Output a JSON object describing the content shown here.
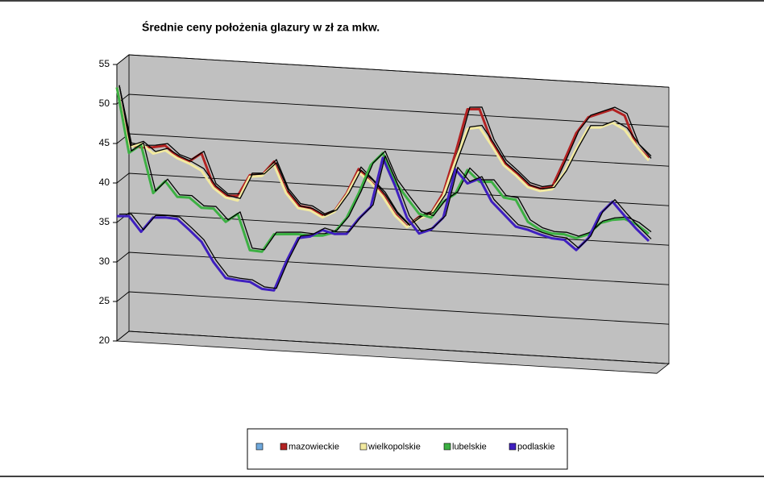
{
  "chart_data": {
    "type": "line",
    "title": "Średnie ceny położenia glazury w zł za mkw.",
    "ylim": [
      20,
      55
    ],
    "yticks": [
      20,
      25,
      30,
      35,
      40,
      45,
      50,
      55
    ],
    "grid": true,
    "series": [
      {
        "name": "mazowieckie",
        "color": "#b22222",
        "values": [
          52.1,
          44.9,
          44.7,
          44.8,
          45.1,
          43.8,
          43.3,
          44.4,
          40.4,
          39.2,
          39.3,
          42.0,
          42.1,
          43.9,
          40.3,
          38.5,
          38.3,
          37.4,
          38.1,
          40.4,
          43.6,
          42.1,
          40.6,
          38.2,
          36.7,
          38.0,
          38.6,
          41.2,
          46.3,
          52.0,
          52.1,
          48.1,
          45.6,
          44.3,
          42.9,
          42.5,
          42.8,
          46.2,
          49.8,
          51.9,
          52.5,
          53.1,
          52.4,
          48.6,
          47.2
        ]
      },
      {
        "name": "wielkopolskie",
        "color": "#f2eaa0",
        "values": [
          52.1,
          44.6,
          45.2,
          44.0,
          44.5,
          43.6,
          43.0,
          42.2,
          40.1,
          39.0,
          38.7,
          41.8,
          42.0,
          43.5,
          40.0,
          38.2,
          38.0,
          37.2,
          38.0,
          40.2,
          43.2,
          42.0,
          40.3,
          38.0,
          36.6,
          37.8,
          38.4,
          40.8,
          45.3,
          49.5,
          49.8,
          47.6,
          45.2,
          44.0,
          42.6,
          42.2,
          42.5,
          44.7,
          47.8,
          50.6,
          50.7,
          51.4,
          50.6,
          48.6,
          46.9
        ]
      },
      {
        "name": "lubelskie",
        "color": "#3cb043",
        "values": [
          52.1,
          43.9,
          45.0,
          39.0,
          40.6,
          38.7,
          38.7,
          37.5,
          37.5,
          35.9,
          37.0,
          32.5,
          32.4,
          34.7,
          34.8,
          34.9,
          34.8,
          34.9,
          35.4,
          37.3,
          40.5,
          44.2,
          45.8,
          42.3,
          40.3,
          38.4,
          38.0,
          40.1,
          41.2,
          44.3,
          42.9,
          43.0,
          41.1,
          40.9,
          38.2,
          37.3,
          36.9,
          36.9,
          36.5,
          37.1,
          38.6,
          39.1,
          39.3,
          38.7,
          37.6
        ]
      },
      {
        "name": "podlaskie",
        "color": "#3f1fbf",
        "values": [
          35.8,
          35.9,
          34.0,
          35.9,
          36.0,
          35.9,
          34.6,
          33.2,
          30.7,
          28.8,
          28.6,
          28.5,
          27.7,
          27.6,
          31.3,
          34.4,
          34.7,
          35.6,
          35.2,
          35.3,
          37.3,
          38.9,
          45.2,
          41.8,
          37.8,
          35.9,
          36.5,
          38.1,
          44.3,
          42.6,
          43.3,
          40.5,
          39.0,
          37.5,
          37.2,
          36.7,
          36.3,
          36.2,
          35.0,
          36.6,
          39.8,
          41.4,
          39.7,
          38.1,
          36.7
        ]
      }
    ]
  }
}
